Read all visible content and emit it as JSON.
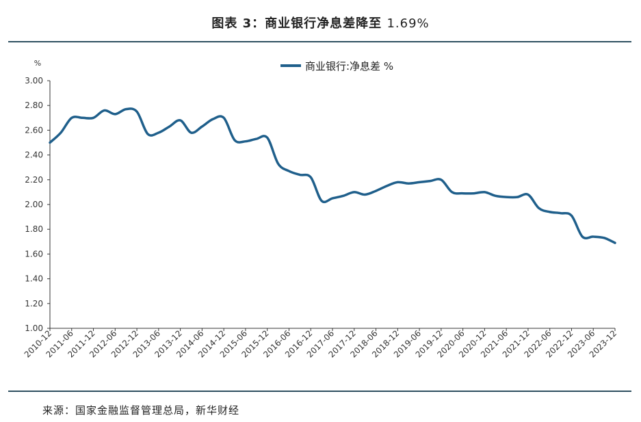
{
  "title": {
    "prefix": "图表 3：商业银行净息差降至",
    "value": "1.69%"
  },
  "source": "来源：国家金融监督管理总局，新华财经",
  "chart_data": {
    "type": "line",
    "ylabel": "%",
    "ylim": [
      1.0,
      3.0
    ],
    "yticks": [
      "3.00",
      "2.80",
      "2.60",
      "2.40",
      "2.20",
      "2.00",
      "1.80",
      "1.60",
      "1.40",
      "1.20",
      "1.00"
    ],
    "xticks": [
      "2010-12",
      "2011-06",
      "2011-12",
      "2012-06",
      "2012-12",
      "2013-06",
      "2013-12",
      "2014-06",
      "2014-12",
      "2015-06",
      "2015-12",
      "2016-06",
      "2016-12",
      "2017-06",
      "2017-12",
      "2018-06",
      "2018-12",
      "2019-06",
      "2019-12",
      "2020-06",
      "2020-12",
      "2021-06",
      "2021-12",
      "2022-06",
      "2022-12",
      "2023-06",
      "2023-12"
    ],
    "series": [
      {
        "name": "商业银行:净息差 %",
        "color": "#1f5f8b",
        "x": [
          "2010-12",
          "2011-03",
          "2011-06",
          "2011-09",
          "2011-12",
          "2012-03",
          "2012-06",
          "2012-09",
          "2012-12",
          "2013-03",
          "2013-06",
          "2013-09",
          "2013-12",
          "2014-03",
          "2014-06",
          "2014-09",
          "2014-12",
          "2015-03",
          "2015-06",
          "2015-09",
          "2015-12",
          "2016-03",
          "2016-06",
          "2016-09",
          "2016-12",
          "2017-03",
          "2017-06",
          "2017-09",
          "2017-12",
          "2018-03",
          "2018-06",
          "2018-09",
          "2018-12",
          "2019-03",
          "2019-06",
          "2019-09",
          "2019-12",
          "2020-03",
          "2020-06",
          "2020-09",
          "2020-12",
          "2021-03",
          "2021-06",
          "2021-09",
          "2021-12",
          "2022-03",
          "2022-06",
          "2022-09",
          "2022-12",
          "2023-03",
          "2023-06",
          "2023-09",
          "2023-12"
        ],
        "values": [
          2.5,
          2.58,
          2.7,
          2.7,
          2.7,
          2.76,
          2.73,
          2.77,
          2.75,
          2.57,
          2.58,
          2.63,
          2.68,
          2.58,
          2.63,
          2.69,
          2.7,
          2.52,
          2.51,
          2.53,
          2.54,
          2.33,
          2.27,
          2.24,
          2.22,
          2.03,
          2.05,
          2.07,
          2.1,
          2.08,
          2.11,
          2.15,
          2.18,
          2.17,
          2.18,
          2.19,
          2.2,
          2.1,
          2.09,
          2.09,
          2.1,
          2.07,
          2.06,
          2.06,
          2.08,
          1.97,
          1.94,
          1.93,
          1.91,
          1.74,
          1.74,
          1.73,
          1.69
        ]
      }
    ]
  }
}
